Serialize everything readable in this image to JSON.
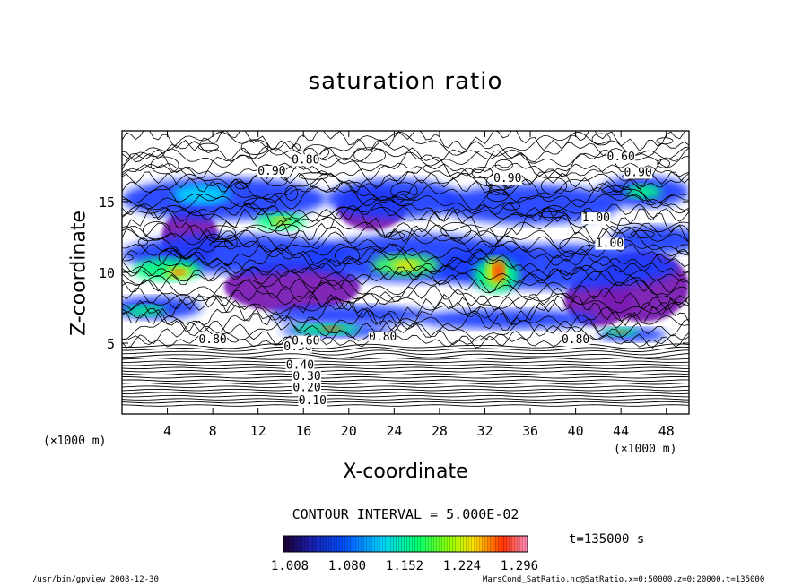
{
  "chart_data": {
    "type": "heatmap",
    "title": "saturation ratio",
    "xlabel": "X-coordinate",
    "ylabel": "Z-coordinate",
    "x_unit": "(×1000 m)",
    "y_unit": "(×1000 m)",
    "xlim": [
      0,
      50
    ],
    "ylim": [
      0,
      20
    ],
    "x_ticks": [
      "4",
      "8",
      "12",
      "16",
      "20",
      "24",
      "28",
      "32",
      "36",
      "40",
      "44",
      "48"
    ],
    "y_ticks": [
      "5",
      "10",
      "15"
    ],
    "contour_interval": "CONTOUR INTERVAL = 5.000E-02",
    "contour_labels": [
      "0.10",
      "0.20",
      "0.30",
      "0.40",
      "0.50",
      "0.60",
      "0.80",
      "0.90",
      "1.00"
    ],
    "colorbar": {
      "ticks": [
        "1.008",
        "1.080",
        "1.152",
        "1.224",
        "1.296"
      ],
      "colors": [
        "#1a0030",
        "#2b0a8a",
        "#0000ff",
        "#00a0ff",
        "#00ffff",
        "#00ff80",
        "#40ff00",
        "#c0ff00",
        "#ffff00",
        "#ffa000",
        "#ff2000",
        "#ff80c0"
      ]
    },
    "supersaturated_color": "#7a1eb4",
    "time_label": "t=135000 s"
  },
  "footer": {
    "left": "/usr/bin/gpview   2008-12-30",
    "right": "MarsCond_SatRatio.nc@SatRatio,x=0:50000,z=0:20000,t=135000"
  }
}
